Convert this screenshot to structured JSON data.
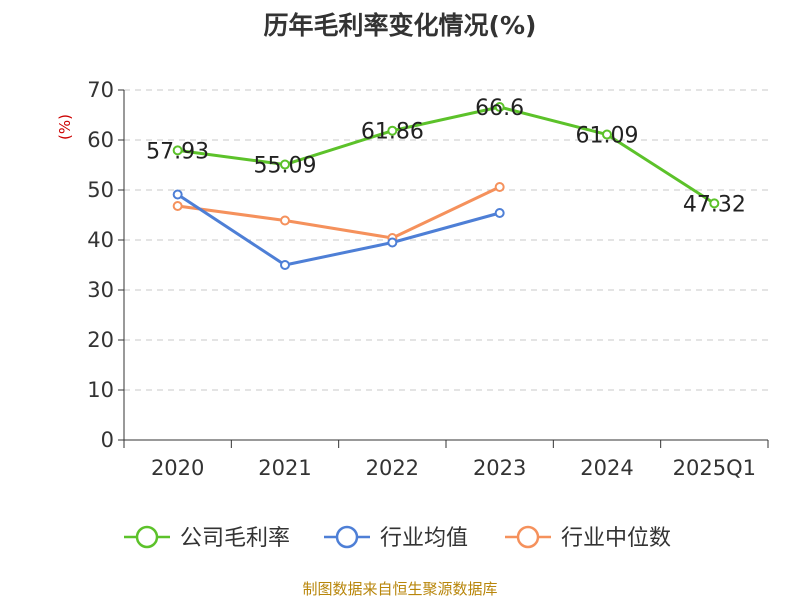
{
  "chart_data": {
    "type": "line",
    "title": "历年毛利率变化情况(%)",
    "ylabel": "(%)",
    "xlabel": "",
    "categories": [
      "2020",
      "2021",
      "2022",
      "2023",
      "2024",
      "2025Q1"
    ],
    "ylim": [
      0,
      70
    ],
    "yticks": [
      0,
      10,
      20,
      30,
      40,
      50,
      60,
      70
    ],
    "grid": true,
    "legend_position": "bottom",
    "series": [
      {
        "name": "公司毛利率",
        "color": "#5cc22a",
        "values": [
          57.93,
          55.09,
          61.86,
          66.6,
          61.09,
          47.32
        ],
        "labels": [
          "57.93",
          "55.09",
          "61.86",
          "66.6",
          "61.09",
          "47.32"
        ]
      },
      {
        "name": "行业均值",
        "color": "#4e7fd6",
        "values": [
          49.1,
          35.0,
          39.5,
          45.4,
          null,
          null
        ]
      },
      {
        "name": "行业中位数",
        "color": "#f5915c",
        "values": [
          46.8,
          43.9,
          40.4,
          50.6,
          null,
          null
        ]
      }
    ]
  },
  "source": "制图数据来自恒生聚源数据库"
}
